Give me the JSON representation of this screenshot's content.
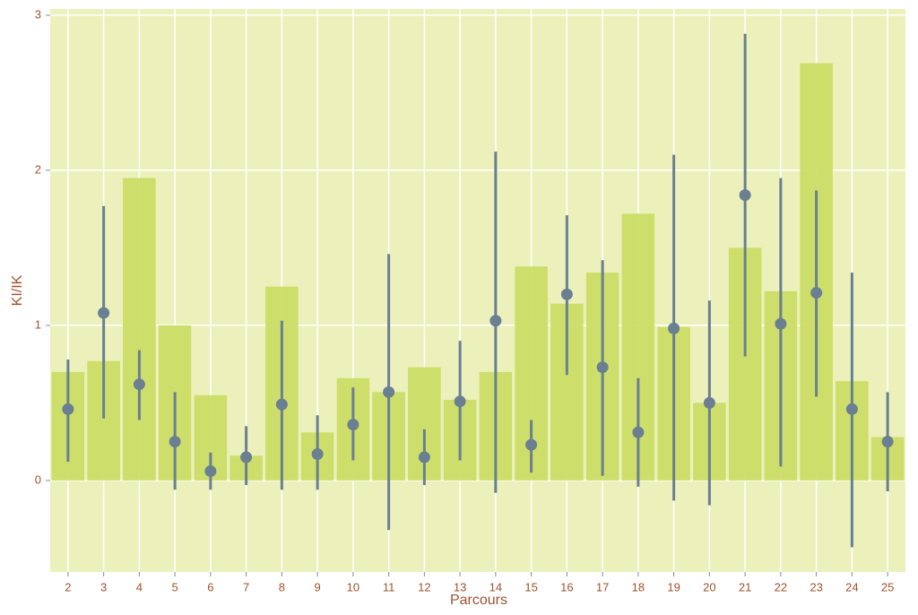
{
  "chart_data": {
    "type": "bar",
    "x_label": "Parcours",
    "y_label": "KI/IK",
    "categories": [
      "2",
      "3",
      "4",
      "5",
      "6",
      "7",
      "8",
      "9",
      "10",
      "11",
      "12",
      "13",
      "14",
      "15",
      "16",
      "17",
      "18",
      "19",
      "20",
      "21",
      "22",
      "23",
      "24",
      "25"
    ],
    "values": [
      0.7,
      0.77,
      1.95,
      1.0,
      0.55,
      0.16,
      1.25,
      0.31,
      0.66,
      0.57,
      0.73,
      0.52,
      0.7,
      1.38,
      1.14,
      1.34,
      1.72,
      0.99,
      0.5,
      1.5,
      1.22,
      2.69,
      0.64,
      0.28
    ],
    "color": "#cbdb62",
    "points": {
      "color": "#6a7f92",
      "values": [
        0.46,
        1.08,
        0.62,
        0.25,
        0.06,
        0.15,
        0.49,
        0.17,
        0.36,
        0.57,
        0.15,
        0.51,
        1.03,
        0.23,
        1.2,
        0.73,
        0.31,
        0.98,
        0.5,
        1.84,
        1.01,
        1.21,
        0.46,
        0.25
      ],
      "lower": [
        0.12,
        0.4,
        0.39,
        -0.06,
        -0.06,
        -0.03,
        -0.06,
        -0.06,
        0.13,
        -0.32,
        -0.03,
        0.13,
        -0.08,
        0.05,
        0.68,
        0.03,
        -0.04,
        -0.13,
        -0.16,
        0.8,
        0.09,
        0.54,
        -0.43,
        -0.07
      ],
      "upper": [
        0.78,
        1.77,
        0.84,
        0.57,
        0.18,
        0.35,
        1.03,
        0.42,
        0.6,
        1.46,
        0.33,
        0.9,
        2.12,
        0.39,
        1.71,
        1.42,
        0.66,
        2.1,
        1.16,
        2.88,
        1.95,
        1.87,
        1.34,
        0.57
      ]
    },
    "ylim": [
      -0.59,
      3.04
    ],
    "yticks": [
      0,
      1,
      2,
      3
    ],
    "grid": true,
    "background": "#ecf1bb"
  }
}
